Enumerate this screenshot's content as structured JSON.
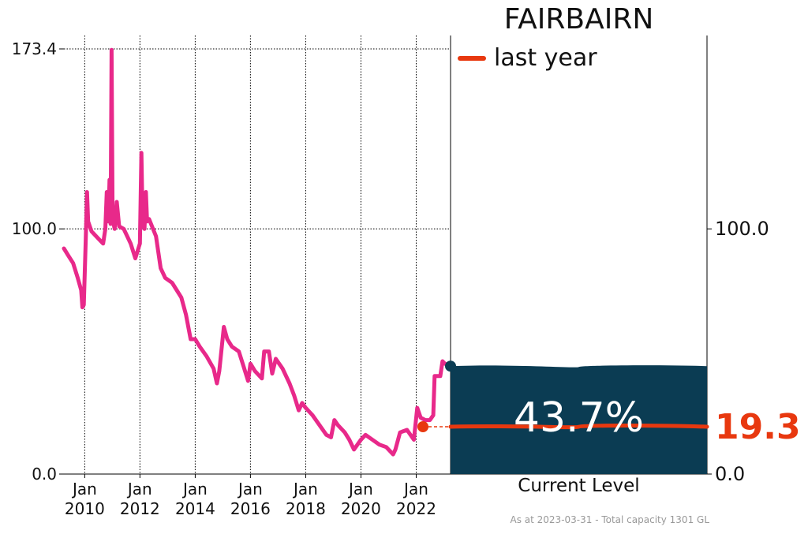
{
  "chart_data": {
    "type": "line",
    "title": "FAIRBAIRN",
    "legend": [
      {
        "name": "last year",
        "color": "#e8380f"
      }
    ],
    "current_level_label": "Current Level",
    "current_percent_text": "43.7%",
    "current_percent": 43.7,
    "last_year_value_text": "19.3",
    "last_year_value": 19.3,
    "footnote": "As at 2023-03-31 - Total capacity 1301 GL",
    "y_left": {
      "min": 0,
      "max": 173.4,
      "ticks": [
        "0.0",
        "100.0",
        "173.4"
      ],
      "tick_values": [
        0,
        100,
        173.4
      ]
    },
    "y_right": {
      "min": 0,
      "max": 173.4,
      "ticks": [
        "0.0",
        "100.0"
      ],
      "tick_values": [
        0,
        100
      ]
    },
    "x_axis": {
      "min": "2009-04-01",
      "max": "2023-03-31",
      "ticks": [
        {
          "date": "2010-01-01",
          "label1": "Jan",
          "label2": "2010"
        },
        {
          "date": "2012-01-01",
          "label1": "Jan",
          "label2": "2012"
        },
        {
          "date": "2014-01-01",
          "label1": "Jan",
          "label2": "2014"
        },
        {
          "date": "2016-01-01",
          "label1": "Jan",
          "label2": "2016"
        },
        {
          "date": "2018-01-01",
          "label1": "Jan",
          "label2": "2018"
        },
        {
          "date": "2020-01-01",
          "label1": "Jan",
          "label2": "2020"
        },
        {
          "date": "2022-01-01",
          "label1": "Jan",
          "label2": "2022"
        }
      ]
    },
    "grid": true,
    "series": [
      {
        "color": "#e8298a",
        "points": [
          [
            "2009-04-01",
            92
          ],
          [
            "2009-06-01",
            89
          ],
          [
            "2009-08-01",
            86
          ],
          [
            "2009-10-01",
            80
          ],
          [
            "2009-11-15",
            75
          ],
          [
            "2009-12-01",
            68
          ],
          [
            "2009-12-20",
            69
          ],
          [
            "2010-01-15",
            96
          ],
          [
            "2010-02-01",
            115
          ],
          [
            "2010-02-15",
            103
          ],
          [
            "2010-04-01",
            99
          ],
          [
            "2010-07-01",
            96
          ],
          [
            "2010-09-01",
            94
          ],
          [
            "2010-10-01",
            100
          ],
          [
            "2010-10-20",
            115
          ],
          [
            "2010-11-10",
            103
          ],
          [
            "2010-11-25",
            120
          ],
          [
            "2010-12-10",
            102
          ],
          [
            "2010-12-22",
            173
          ],
          [
            "2011-01-05",
            104
          ],
          [
            "2011-02-01",
            100
          ],
          [
            "2011-03-01",
            111
          ],
          [
            "2011-04-01",
            101
          ],
          [
            "2011-06-01",
            100
          ],
          [
            "2011-09-01",
            94
          ],
          [
            "2011-11-01",
            88
          ],
          [
            "2011-12-01",
            91
          ],
          [
            "2012-01-01",
            94
          ],
          [
            "2012-01-20",
            131
          ],
          [
            "2012-02-05",
            103
          ],
          [
            "2012-03-01",
            100
          ],
          [
            "2012-03-20",
            115
          ],
          [
            "2012-04-05",
            103
          ],
          [
            "2012-05-01",
            104
          ],
          [
            "2012-08-01",
            97
          ],
          [
            "2012-10-01",
            84
          ],
          [
            "2012-12-01",
            80
          ],
          [
            "2013-03-01",
            78
          ],
          [
            "2013-07-01",
            72
          ],
          [
            "2013-09-01",
            65
          ],
          [
            "2013-11-01",
            55
          ],
          [
            "2014-01-01",
            55
          ],
          [
            "2014-03-01",
            52
          ],
          [
            "2014-06-01",
            48
          ],
          [
            "2014-09-01",
            43
          ],
          [
            "2014-10-15",
            37
          ],
          [
            "2014-11-15",
            42
          ],
          [
            "2015-01-15",
            60
          ],
          [
            "2015-03-01",
            55
          ],
          [
            "2015-05-01",
            52
          ],
          [
            "2015-08-01",
            50
          ],
          [
            "2015-10-01",
            44
          ],
          [
            "2015-12-01",
            38
          ],
          [
            "2016-01-01",
            45
          ],
          [
            "2016-03-01",
            42
          ],
          [
            "2016-06-01",
            39
          ],
          [
            "2016-07-01",
            50
          ],
          [
            "2016-08-01",
            50
          ],
          [
            "2016-09-01",
            50
          ],
          [
            "2016-10-15",
            41
          ],
          [
            "2016-12-01",
            47
          ],
          [
            "2017-03-01",
            43
          ],
          [
            "2017-06-01",
            37
          ],
          [
            "2017-08-01",
            32
          ],
          [
            "2017-10-01",
            26
          ],
          [
            "2017-11-15",
            29
          ],
          [
            "2018-01-01",
            27
          ],
          [
            "2018-04-01",
            24
          ],
          [
            "2018-07-01",
            20
          ],
          [
            "2018-10-01",
            16
          ],
          [
            "2018-12-01",
            15
          ],
          [
            "2019-01-15",
            22
          ],
          [
            "2019-03-01",
            20
          ],
          [
            "2019-06-01",
            17
          ],
          [
            "2019-08-01",
            14
          ],
          [
            "2019-10-01",
            10
          ],
          [
            "2020-01-01",
            14
          ],
          [
            "2020-03-01",
            16
          ],
          [
            "2020-06-01",
            14
          ],
          [
            "2020-09-01",
            12
          ],
          [
            "2020-12-01",
            11
          ],
          [
            "2021-03-01",
            8
          ],
          [
            "2021-04-01",
            10
          ],
          [
            "2021-06-01",
            17
          ],
          [
            "2021-09-01",
            18
          ],
          [
            "2021-12-01",
            14
          ],
          [
            "2022-01-15",
            27
          ],
          [
            "2022-03-01",
            23
          ],
          [
            "2022-05-01",
            22
          ],
          [
            "2022-07-01",
            22
          ],
          [
            "2022-08-15",
            24
          ],
          [
            "2022-09-01",
            40
          ],
          [
            "2022-10-15",
            40
          ],
          [
            "2022-11-15",
            40
          ],
          [
            "2022-12-15",
            46
          ],
          [
            "2023-01-15",
            45
          ],
          [
            "2023-03-31",
            44
          ]
        ]
      }
    ],
    "last_year_marker": {
      "date": "2022-03-31",
      "value": 19.3,
      "color": "#e8380f"
    },
    "current_marker": {
      "date": "2023-03-31",
      "value": 44,
      "color": "#0b3c53"
    },
    "fill_color": "#0b3c53"
  }
}
